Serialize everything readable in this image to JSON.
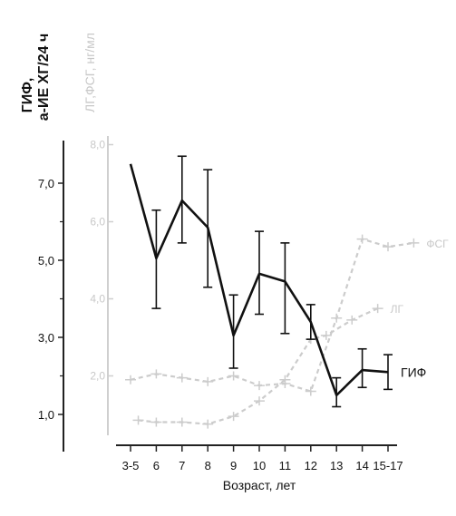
{
  "chart_data": {
    "type": "line",
    "title": "",
    "xlabel": "Возраст, лет",
    "ylabel_primary": [
      "ГИФ,",
      "а-ИЕ ХГ/24 ч"
    ],
    "ylabel_secondary": "ЛГ,ФСГ, нг/мл",
    "categories": [
      "3-5",
      "6",
      "7",
      "8",
      "9",
      "10",
      "11",
      "12",
      "13",
      "14",
      "15-17"
    ],
    "y_ticks_primary": [
      "7,0",
      "5,0",
      "3,0",
      "1,0"
    ],
    "y_ticks_secondary": [
      "8,0",
      "6,0",
      "4,0",
      "2,0"
    ],
    "ylim_primary": [
      0,
      9.2
    ],
    "ylim_secondary": [
      0,
      10
    ],
    "grid": false,
    "series": [
      {
        "name": "ГИФ",
        "axis": "primary",
        "style": "solid",
        "color": "#111111",
        "values": [
          7.5,
          5.05,
          6.55,
          5.85,
          3.05,
          4.65,
          4.45,
          3.4,
          1.5,
          2.15,
          2.1
        ],
        "err_low": [
          null,
          3.75,
          5.45,
          4.3,
          2.2,
          3.6,
          3.1,
          2.95,
          1.2,
          1.7,
          1.65
        ],
        "err_high": [
          null,
          6.3,
          7.7,
          7.35,
          4.1,
          5.75,
          5.45,
          3.85,
          1.95,
          2.7,
          2.55
        ]
      },
      {
        "name": "ФСГ",
        "axis": "secondary",
        "style": "dashed",
        "color": "#cccccc",
        "values": [
          1.9,
          2.05,
          1.95,
          1.85,
          2.0,
          1.75,
          1.8,
          1.6,
          3.5,
          5.55,
          5.35,
          5.45
        ],
        "x": [
          0,
          1,
          2,
          3,
          4,
          5,
          6,
          7,
          8,
          9,
          10,
          11
        ]
      },
      {
        "name": "ЛГ",
        "axis": "secondary",
        "style": "dashed",
        "color": "#cccccc",
        "values": [
          0.85,
          0.8,
          0.8,
          0.75,
          0.95,
          1.35,
          1.9,
          2.95,
          3.05,
          3.45,
          3.75
        ],
        "x": [
          0.3,
          1,
          2,
          3,
          4,
          5,
          6,
          7,
          7.6,
          8.6,
          9.6
        ]
      }
    ]
  }
}
